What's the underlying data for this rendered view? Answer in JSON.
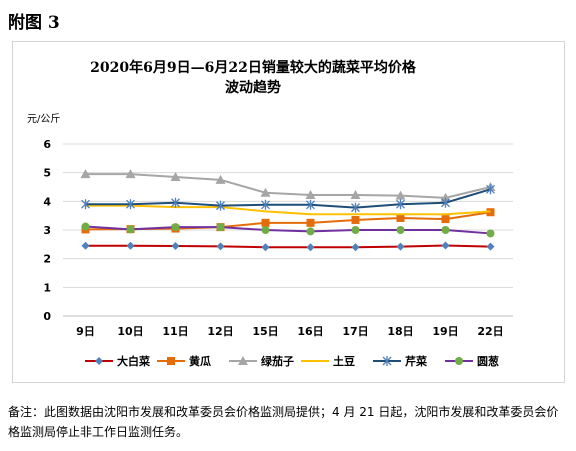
{
  "figure_label": "附图 3",
  "chart_data": {
    "type": "line",
    "title_line1": "2020年6月9日—6月22日销量较大的蔬菜平均价格",
    "title_line2": "波动趋势",
    "ylabel": "元/公斤",
    "xlabel": "",
    "categories": [
      "9日",
      "10日",
      "11日",
      "12日",
      "15日",
      "16日",
      "17日",
      "18日",
      "19日",
      "22日"
    ],
    "ylim": [
      0,
      6
    ],
    "yticks": [
      0,
      1,
      2,
      3,
      4,
      5,
      6
    ],
    "grid": "horizontal",
    "legend_position": "bottom",
    "series": [
      {
        "name": "大白菜",
        "color": "#c00000",
        "marker": "diamond",
        "marker_color": "#4f81bd",
        "values": [
          2.45,
          2.45,
          2.44,
          2.43,
          2.4,
          2.4,
          2.4,
          2.42,
          2.46,
          2.42
        ]
      },
      {
        "name": "黄瓜",
        "color": "#e46c0a",
        "marker": "square",
        "marker_color": "#e46c0a",
        "values": [
          3.02,
          3.03,
          3.05,
          3.1,
          3.25,
          3.25,
          3.35,
          3.42,
          3.38,
          3.62
        ]
      },
      {
        "name": "绿茄子",
        "color": "#a6a6a6",
        "marker": "triangle",
        "marker_color": "#a6a6a6",
        "values": [
          4.95,
          4.95,
          4.85,
          4.75,
          4.3,
          4.22,
          4.22,
          4.2,
          4.12,
          4.5
        ]
      },
      {
        "name": "土豆",
        "color": "#ffc000",
        "marker": "none",
        "marker_color": "#ffc000",
        "values": [
          3.85,
          3.85,
          3.8,
          3.8,
          3.65,
          3.55,
          3.55,
          3.55,
          3.55,
          3.65
        ]
      },
      {
        "name": "芹菜",
        "color": "#1f4e79",
        "marker": "asterisk",
        "marker_color": "#4f81bd",
        "values": [
          3.9,
          3.9,
          3.95,
          3.85,
          3.88,
          3.88,
          3.78,
          3.9,
          3.95,
          4.42
        ]
      },
      {
        "name": "圆葱",
        "color": "#7030a0",
        "marker": "circle",
        "marker_color": "#70ad47",
        "values": [
          3.12,
          3.02,
          3.1,
          3.1,
          3.0,
          2.95,
          3.0,
          3.0,
          3.0,
          2.88
        ]
      }
    ]
  },
  "note": "备注：此图数据由沈阳市发展和改革委员会价格监测局提供；4 月 21 日起，沈阳市发展和改革委员会价格监测局停止非工作日监测任务。"
}
